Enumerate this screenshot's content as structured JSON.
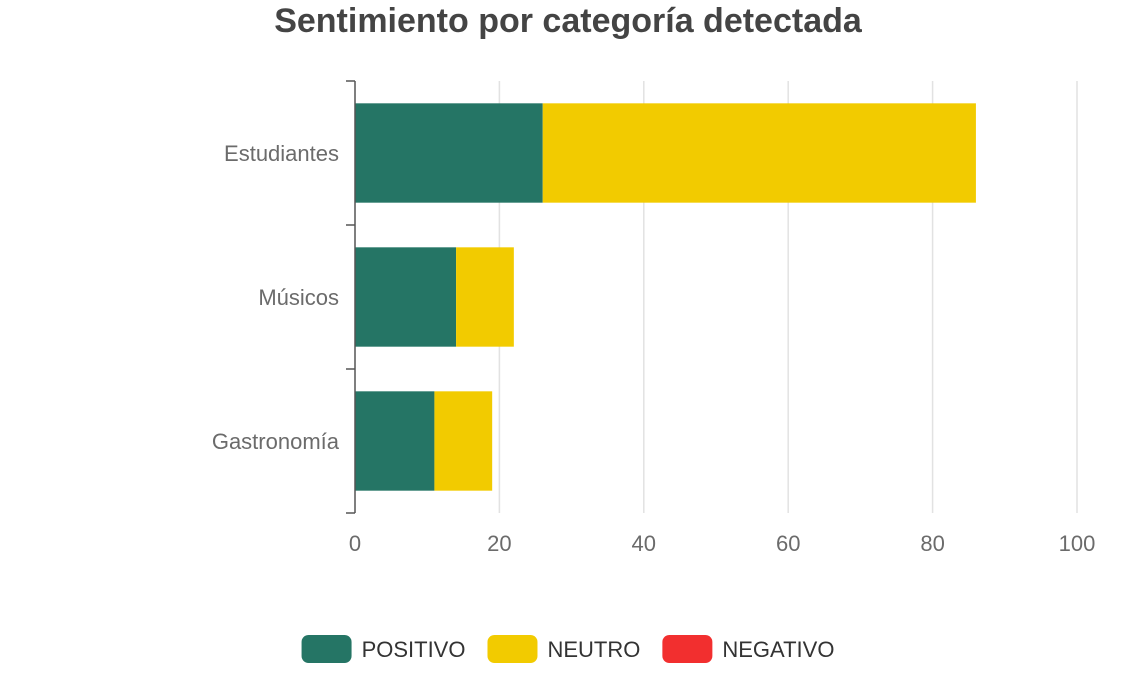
{
  "chart_data": {
    "type": "bar",
    "orientation": "horizontal",
    "stacked": true,
    "title": "Sentimiento por categoría detectada",
    "categories": [
      "Estudiantes",
      "Músicos",
      "Gastronomía"
    ],
    "series": [
      {
        "name": "POSITIVO",
        "values": [
          26,
          14,
          11
        ],
        "color": "#257565"
      },
      {
        "name": "NEUTRO",
        "values": [
          60,
          8,
          8
        ],
        "color": "#f2cb00"
      },
      {
        "name": "NEGATIVO",
        "values": [
          0,
          0,
          0
        ],
        "color": "#f22f2f"
      }
    ],
    "xlim": [
      0,
      100
    ],
    "xticks": [
      0,
      20,
      40,
      60,
      80,
      100
    ],
    "grid": true,
    "legend_position": "bottom"
  }
}
